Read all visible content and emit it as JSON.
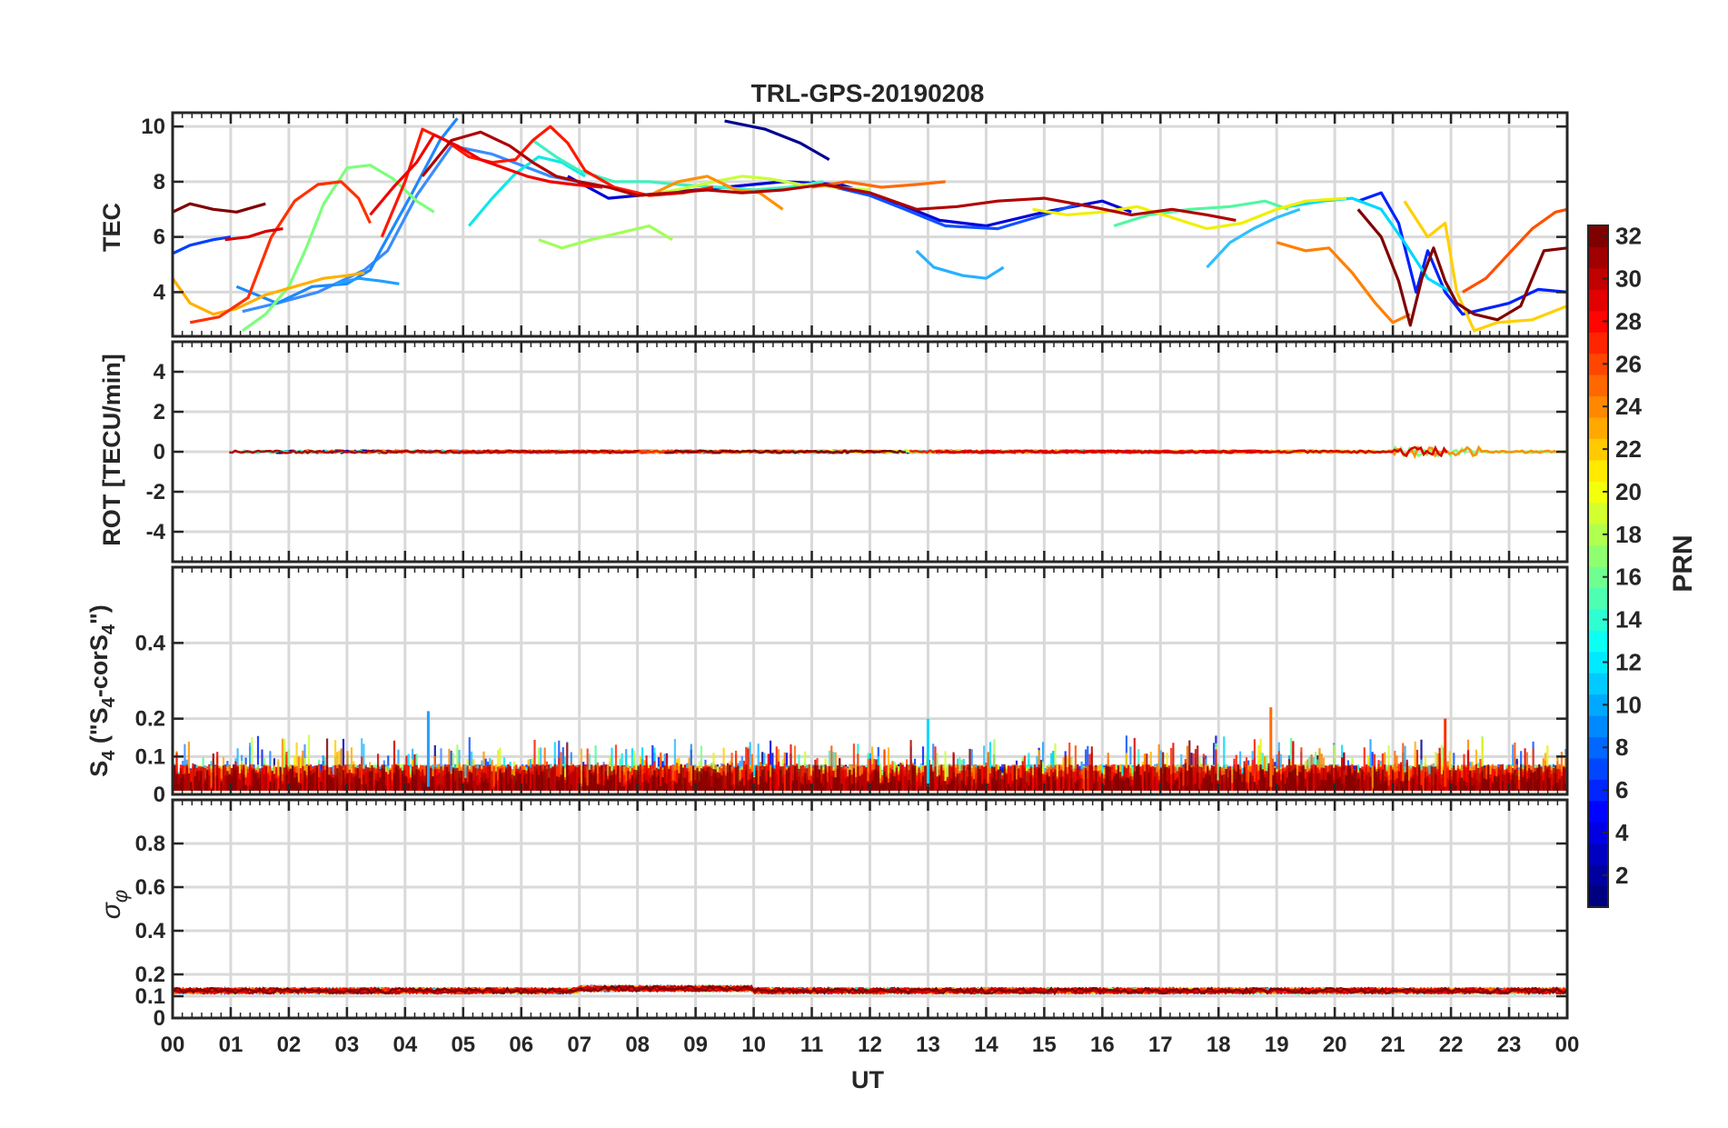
{
  "chart_data": {
    "type": "line",
    "title": "TRL-GPS-20190208",
    "xlabel": "UT",
    "x_ticks": [
      "00",
      "01",
      "02",
      "03",
      "04",
      "05",
      "06",
      "07",
      "08",
      "09",
      "10",
      "11",
      "12",
      "13",
      "14",
      "15",
      "16",
      "17",
      "18",
      "19",
      "20",
      "21",
      "22",
      "23",
      "00"
    ],
    "xlim_hours": [
      0,
      24
    ],
    "grid": true,
    "panels": [
      {
        "id": "tec",
        "ylabel": "TEC",
        "ylim": [
          2.4,
          10.5
        ],
        "y_ticks": [
          4,
          6,
          8,
          10
        ],
        "series": [
          {
            "prn": 1,
            "color": "#00008f",
            "x": [
              9.5,
              10.2,
              10.8,
              11.3
            ],
            "y": [
              10.2,
              9.9,
              9.4,
              8.8
            ]
          },
          {
            "prn": 3,
            "color": "#0000d8",
            "x": [
              6.8,
              7.5,
              8.5,
              9.5,
              10.5,
              11.5,
              12.5,
              13.2,
              14,
              15,
              16,
              16.5
            ],
            "y": [
              8.2,
              7.4,
              7.6,
              7.8,
              8.0,
              7.9,
              7.2,
              6.6,
              6.4,
              6.9,
              7.3,
              6.9
            ]
          },
          {
            "prn": 4,
            "color": "#0020ff",
            "x": [
              20.4,
              20.8,
              21.1,
              21.4,
              21.6,
              21.9,
              22.2,
              22.6,
              23.0,
              23.5,
              24.0
            ],
            "y": [
              7.3,
              7.6,
              6.5,
              4.0,
              5.5,
              4.0,
              3.2,
              3.4,
              3.6,
              4.1,
              4.0
            ]
          },
          {
            "prn": 5,
            "color": "#0040ff",
            "x": [
              0.0,
              0.3,
              0.7,
              1.0
            ],
            "y": [
              5.4,
              5.7,
              5.9,
              6.0
            ]
          },
          {
            "prn": 6,
            "color": "#1050ff",
            "x": [
              11.0,
              12.0,
              12.6,
              13.3,
              14.2,
              15.0,
              15.6
            ],
            "y": [
              8.0,
              7.5,
              7.0,
              6.4,
              6.3,
              6.8,
              7.2
            ]
          },
          {
            "prn": 8,
            "color": "#3a8cff",
            "x": [
              1.2,
              1.8,
              2.5,
              3.0,
              3.3,
              3.7,
              4.2,
              4.8,
              5.5,
              6.5,
              7.5
            ],
            "y": [
              3.3,
              3.6,
              4.0,
              4.5,
              4.8,
              5.5,
              7.5,
              9.3,
              9.0,
              8.2,
              7.8
            ]
          },
          {
            "prn": 9,
            "color": "#1e88ff",
            "x": [
              1.1,
              1.8,
              2.4,
              3.0,
              3.4,
              3.6,
              4.1,
              4.6,
              4.9
            ],
            "y": [
              4.2,
              3.6,
              4.2,
              4.3,
              4.8,
              5.6,
              7.5,
              9.5,
              10.3
            ]
          },
          {
            "prn": 10,
            "color": "#20a0ff",
            "x": [
              2.8,
              3.2,
              3.6,
              3.9
            ],
            "y": [
              4.3,
              4.5,
              4.4,
              4.3
            ]
          },
          {
            "prn": 11,
            "color": "#28b0ff",
            "x": [
              12.8,
              13.1,
              13.6,
              14.0,
              14.3
            ],
            "y": [
              5.5,
              4.9,
              4.6,
              4.5,
              4.9
            ]
          },
          {
            "prn": 12,
            "color": "#30c0ff",
            "x": [
              17.8,
              18.2,
              18.6,
              19.0,
              19.4
            ],
            "y": [
              4.9,
              5.8,
              6.3,
              6.7,
              7.0
            ]
          },
          {
            "prn": 13,
            "color": "#00d8ff",
            "x": [
              19.2,
              19.8,
              20.3,
              20.8,
              21.2,
              21.6,
              22.0
            ],
            "y": [
              7.1,
              7.3,
              7.4,
              7.0,
              5.8,
              4.5,
              4.0
            ]
          },
          {
            "prn": 14,
            "color": "#10e8e8",
            "x": [
              5.1,
              5.5,
              5.9,
              6.3,
              6.7,
              7.1
            ],
            "y": [
              6.4,
              7.4,
              8.3,
              8.9,
              8.7,
              8.2
            ]
          },
          {
            "prn": 15,
            "color": "#40f0c0",
            "x": [
              6.2,
              6.6,
              7.0,
              7.6,
              8.2,
              8.7,
              9.4,
              10.0,
              10.6,
              11.2
            ],
            "y": [
              9.5,
              8.9,
              8.4,
              8.0,
              8.0,
              7.9,
              7.8,
              7.7,
              7.8,
              8.0
            ]
          },
          {
            "prn": 16,
            "color": "#50f8a0",
            "x": [
              16.2,
              16.8,
              17.5,
              18.2,
              18.8,
              19.2
            ],
            "y": [
              6.4,
              6.8,
              7.0,
              7.1,
              7.3,
              7.0
            ]
          },
          {
            "prn": 17,
            "color": "#7cff7c",
            "x": [
              1.2,
              1.6,
              2.0,
              2.3,
              2.6,
              3.0,
              3.4,
              3.8,
              4.2,
              4.5
            ],
            "y": [
              2.6,
              3.2,
              4.2,
              5.6,
              7.2,
              8.5,
              8.6,
              8.1,
              7.3,
              6.9
            ]
          },
          {
            "prn": 18,
            "color": "#a0ff58",
            "x": [
              6.3,
              6.7,
              7.2,
              7.8,
              8.2,
              8.6
            ],
            "y": [
              5.9,
              5.6,
              5.9,
              6.2,
              6.4,
              5.9
            ]
          },
          {
            "prn": 19,
            "color": "#c8ff38",
            "x": [
              8.4,
              8.9,
              9.3,
              9.8,
              10.3,
              10.8,
              11.4,
              12.0
            ],
            "y": [
              7.6,
              7.8,
              8.0,
              8.2,
              8.1,
              7.9,
              7.8,
              7.7
            ]
          },
          {
            "prn": 20,
            "color": "#f0f000",
            "x": [
              14.8,
              15.4,
              16.0,
              16.6,
              17.2,
              17.8,
              18.4,
              19.0,
              19.5,
              20.2
            ],
            "y": [
              7.0,
              6.8,
              6.9,
              7.1,
              6.7,
              6.3,
              6.5,
              7.0,
              7.3,
              7.4
            ]
          },
          {
            "prn": 21,
            "color": "#ffd000",
            "x": [
              21.2,
              21.6,
              21.9,
              22.1,
              22.4,
              22.8,
              23.4,
              24.0
            ],
            "y": [
              7.3,
              6.0,
              6.5,
              4.0,
              2.6,
              2.9,
              3.0,
              3.5
            ]
          },
          {
            "prn": 22,
            "color": "#ffb000",
            "x": [
              0.0,
              0.3,
              0.7,
              1.1,
              1.6,
              2.1,
              2.6,
              3.0,
              3.3
            ],
            "y": [
              4.5,
              3.6,
              3.2,
              3.4,
              3.9,
              4.2,
              4.5,
              4.6,
              4.7
            ]
          },
          {
            "prn": 23,
            "color": "#ff9000",
            "x": [
              8.2,
              8.7,
              9.2,
              9.7,
              10.1,
              10.5
            ],
            "y": [
              7.5,
              8.0,
              8.2,
              7.7,
              7.6,
              7.0
            ]
          },
          {
            "prn": 24,
            "color": "#ff8000",
            "x": [
              19.0,
              19.5,
              19.9,
              20.3,
              20.7,
              21.0,
              21.3
            ],
            "y": [
              5.8,
              5.5,
              5.6,
              4.7,
              3.6,
              2.9,
              3.2
            ]
          },
          {
            "prn": 25,
            "color": "#ff6a00",
            "x": [
              11.0,
              11.6,
              12.2,
              12.8,
              13.3
            ],
            "y": [
              7.8,
              8.0,
              7.8,
              7.9,
              8.0
            ]
          },
          {
            "prn": 26,
            "color": "#ff5000",
            "x": [
              22.2,
              22.6,
              23.0,
              23.4,
              23.8,
              24.0
            ],
            "y": [
              4.0,
              4.5,
              5.4,
              6.3,
              6.9,
              7.0
            ]
          },
          {
            "prn": 27,
            "color": "#ff3000",
            "x": [
              0.3,
              0.8,
              1.3,
              1.7,
              2.1,
              2.5,
              2.9,
              3.2,
              3.4
            ],
            "y": [
              2.9,
              3.1,
              3.8,
              6.0,
              7.3,
              7.9,
              8.0,
              7.4,
              6.5
            ]
          },
          {
            "prn": 28,
            "color": "#ff1800",
            "x": [
              3.6,
              4.0,
              4.3,
              4.7,
              5.1,
              5.5,
              5.9,
              6.2,
              6.5,
              6.8,
              7.1,
              7.6,
              8.2,
              8.8,
              9.3
            ],
            "y": [
              6.0,
              8.0,
              9.9,
              9.5,
              8.9,
              8.7,
              8.8,
              9.5,
              10.0,
              9.4,
              8.4,
              7.8,
              7.5,
              7.6,
              7.8
            ]
          },
          {
            "prn": 29,
            "color": "#f00000",
            "x": [
              3.4,
              3.8,
              4.2,
              4.5,
              4.9,
              5.3,
              5.7,
              6.1,
              6.5,
              6.9,
              7.4
            ],
            "y": [
              6.8,
              7.8,
              8.7,
              9.7,
              9.3,
              8.8,
              8.5,
              8.2,
              8.0,
              7.9,
              7.8
            ]
          },
          {
            "prn": 30,
            "color": "#d40000",
            "x": [
              0.9,
              1.3,
              1.6,
              1.9
            ],
            "y": [
              5.9,
              6.0,
              6.2,
              6.3
            ]
          },
          {
            "prn": 31,
            "color": "#b00000",
            "x": [
              4.3,
              4.8,
              5.3,
              5.8,
              6.2,
              6.6,
              7.0,
              7.5,
              8.0,
              8.6,
              9.2,
              9.8,
              10.5,
              11.2,
              12.0,
              12.8,
              13.5,
              14.2,
              15.0,
              15.8,
              16.5,
              17.2,
              17.8,
              18.3
            ],
            "y": [
              8.2,
              9.5,
              9.8,
              9.3,
              8.7,
              8.2,
              8.0,
              7.8,
              7.5,
              7.6,
              7.7,
              7.6,
              7.7,
              7.9,
              7.6,
              7.0,
              7.1,
              7.3,
              7.4,
              7.1,
              6.8,
              7.0,
              6.8,
              6.6
            ]
          },
          {
            "prn": 32,
            "color": "#800000",
            "x": [
              0.0,
              0.3,
              0.7,
              1.1,
              1.6,
              20.0,
              20.4,
              20.8,
              21.1,
              21.3,
              21.5,
              21.7,
              21.9,
              22.1,
              22.4,
              22.8,
              23.2,
              23.6,
              24.0
            ],
            "y": [
              6.9,
              7.2,
              7.0,
              6.9,
              7.2,
              null,
              7.0,
              6.0,
              4.4,
              2.8,
              4.5,
              5.6,
              4.4,
              3.6,
              3.2,
              3.0,
              3.5,
              5.5,
              5.6
            ]
          }
        ]
      },
      {
        "id": "rot",
        "ylabel": "ROT [TECU/min]",
        "ylim": [
          -5.5,
          5.5
        ],
        "y_ticks": [
          -4,
          -2,
          0,
          2,
          4
        ],
        "series_note_values": {
          "baseline": 0,
          "peak_range": [
            -0.5,
            0.8
          ],
          "disturbed_hours": [
            21.0,
            22.5
          ]
        }
      },
      {
        "id": "s4",
        "ylabel": "S4 (\"S4-corS4\")",
        "ylim": [
          0,
          0.6
        ],
        "y_ticks": [
          0,
          0.1,
          0.2,
          0.4
        ],
        "series_note_values": {
          "typical_range": [
            0.0,
            0.12
          ],
          "peaks": [
            {
              "x": 4.4,
              "y": 0.22,
              "prn": 8
            },
            {
              "x": 18.9,
              "y": 0.23,
              "prn": 23
            },
            {
              "x": 21.9,
              "y": 0.2,
              "prn": 25
            },
            {
              "x": 13.0,
              "y": 0.2,
              "prn": 11
            }
          ]
        }
      },
      {
        "id": "sigma",
        "ylabel": "σφ",
        "ylim": [
          0,
          1.0
        ],
        "y_ticks": [
          0,
          0.1,
          0.2,
          0.4,
          0.6,
          0.8
        ],
        "series_note_values": {
          "typical_level": 0.13,
          "range": [
            0.11,
            0.16
          ]
        }
      }
    ],
    "colorbar": {
      "label": "PRN",
      "range": [
        1,
        32
      ],
      "ticks": [
        2,
        4,
        6,
        8,
        10,
        12,
        14,
        16,
        18,
        20,
        22,
        24,
        26,
        28,
        30,
        32
      ],
      "colormap": "jet"
    }
  }
}
